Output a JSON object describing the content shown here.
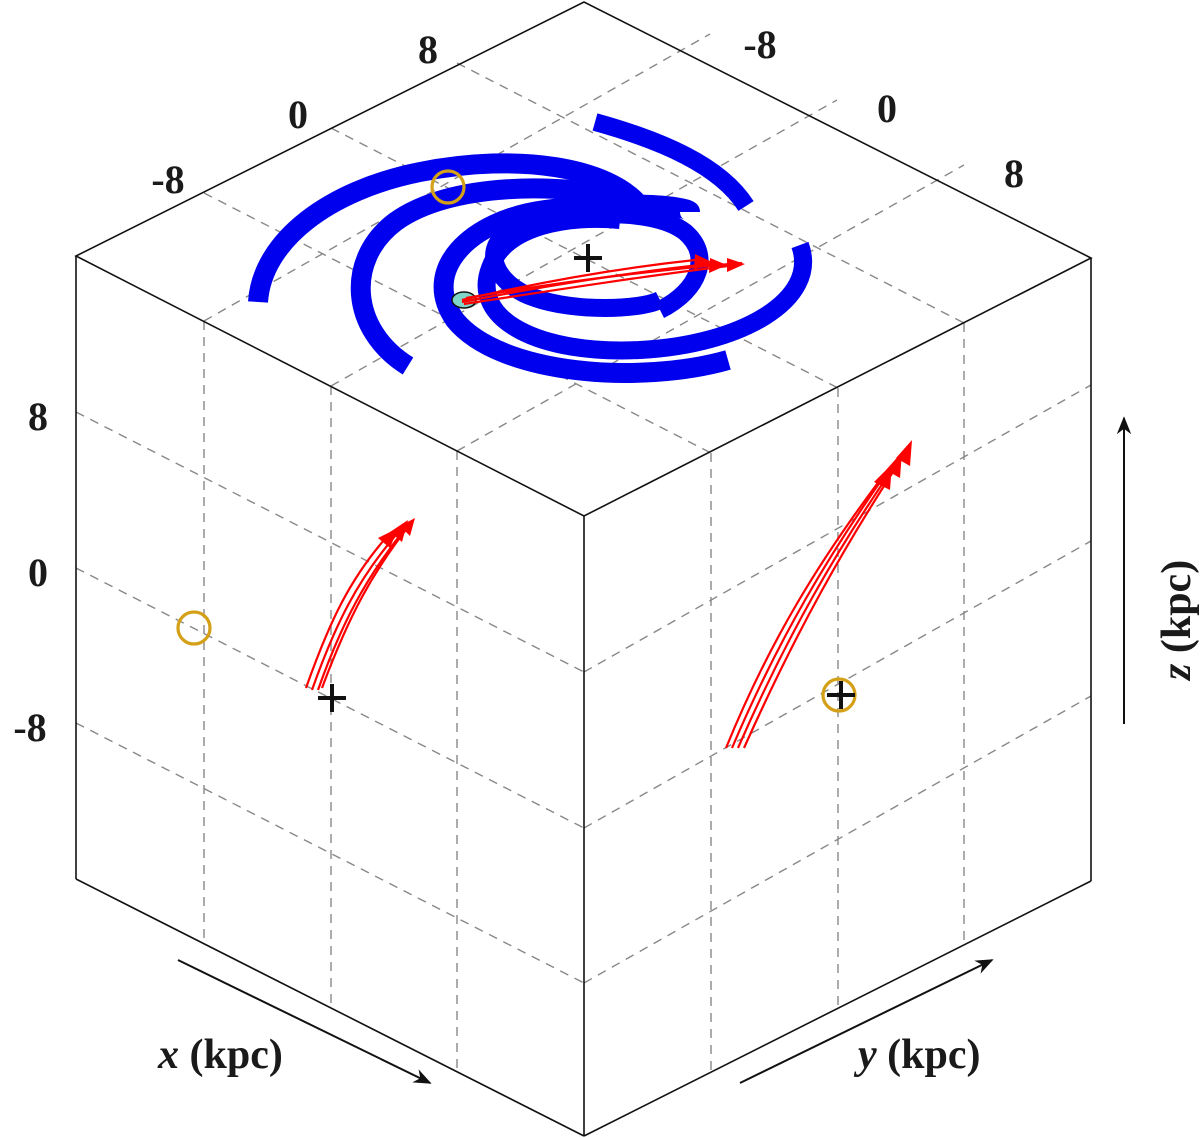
{
  "figure": {
    "top_x_ticks": [
      "-8",
      "0",
      "8"
    ],
    "top_y_ticks": [
      "-8",
      "0",
      "8"
    ],
    "z_ticks": [
      "8",
      "0",
      "-8"
    ],
    "x_label": {
      "var": "x",
      "unit": "(kpc)"
    },
    "y_label": {
      "var": "y",
      "unit": "(kpc)"
    },
    "z_label": {
      "var": "z",
      "unit": "(kpc)"
    },
    "colors": {
      "spiral_arms": "#0000ee",
      "trajectories": "#ff0000",
      "sun_marker": "#d4a017",
      "galactic_center": "#111111",
      "start_blob": "#7fd6c8",
      "grid": "#888888",
      "edges": "#111111"
    },
    "symbols": {
      "sun_marker": "open-circle-icon",
      "galactic_center": "plus-icon"
    }
  }
}
